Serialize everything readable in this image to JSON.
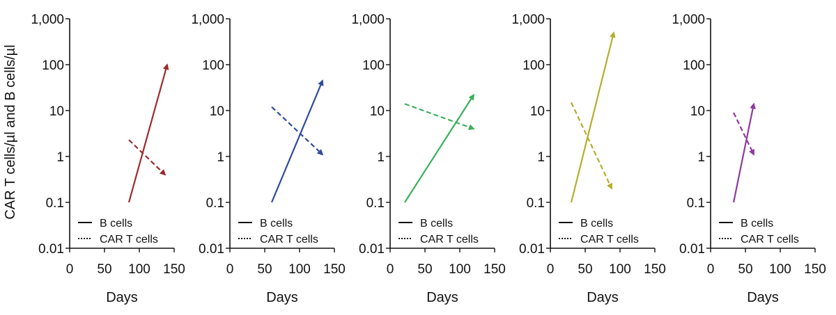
{
  "figure": {
    "ylabel": "CAR T cells/µl and B cells/µl"
  },
  "chart_data": [
    {
      "type": "line",
      "panel": 1,
      "color": "#9e2a2b",
      "xlabel": "Days",
      "x_ticks": [
        0,
        50,
        100,
        150
      ],
      "y_ticks": [
        "0.01",
        "0.1",
        "1",
        "10",
        "100",
        "1,000"
      ],
      "ylim": [
        0.01,
        1000
      ],
      "xlim": [
        0,
        150
      ],
      "y_scale": "log",
      "legend": [
        "B cells",
        "CAR T cells"
      ],
      "series": [
        {
          "name": "B cells",
          "style": "solid",
          "x": [
            85,
            140
          ],
          "y": [
            0.1,
            100
          ]
        },
        {
          "name": "CAR T cells",
          "style": "dashed",
          "x": [
            85,
            137
          ],
          "y": [
            2.3,
            0.4
          ]
        }
      ]
    },
    {
      "type": "line",
      "panel": 2,
      "color": "#2f4aa0",
      "xlabel": "Days",
      "x_ticks": [
        0,
        50,
        100,
        150
      ],
      "y_ticks": [
        "0.01",
        "0.1",
        "1",
        "10",
        "100",
        "1,000"
      ],
      "ylim": [
        0.01,
        1000
      ],
      "xlim": [
        0,
        150
      ],
      "y_scale": "log",
      "legend": [
        "B cells",
        "CAR T cells"
      ],
      "series": [
        {
          "name": "B cells",
          "style": "solid",
          "x": [
            60,
            133
          ],
          "y": [
            0.1,
            45
          ]
        },
        {
          "name": "CAR T cells",
          "style": "dashed",
          "x": [
            60,
            133
          ],
          "y": [
            12,
            1.1
          ]
        }
      ]
    },
    {
      "type": "line",
      "panel": 3,
      "color": "#3aaf5c",
      "xlabel": "Days",
      "x_ticks": [
        0,
        50,
        100,
        150
      ],
      "y_ticks": [
        "0.01",
        "0.1",
        "1",
        "10",
        "100",
        "1,000"
      ],
      "ylim": [
        0.01,
        1000
      ],
      "xlim": [
        0,
        150
      ],
      "y_scale": "log",
      "legend": [
        "B cells",
        "CAR T cells"
      ],
      "series": [
        {
          "name": "B cells",
          "style": "solid",
          "x": [
            21,
            120
          ],
          "y": [
            0.1,
            22
          ]
        },
        {
          "name": "CAR T cells",
          "style": "dashed",
          "x": [
            21,
            120
          ],
          "y": [
            14,
            4
          ]
        }
      ]
    },
    {
      "type": "line",
      "panel": 4,
      "color": "#b5ad2c",
      "xlabel": "Days",
      "x_ticks": [
        0,
        50,
        100,
        150
      ],
      "y_ticks": [
        "0.01",
        "0.1",
        "1",
        "10",
        "100",
        "1,000"
      ],
      "ylim": [
        0.01,
        1000
      ],
      "xlim": [
        0,
        150
      ],
      "y_scale": "log",
      "legend": [
        "B cells",
        "CAR T cells"
      ],
      "series": [
        {
          "name": "B cells",
          "style": "solid",
          "x": [
            30,
            91
          ],
          "y": [
            0.1,
            500
          ]
        },
        {
          "name": "CAR T cells",
          "style": "dashed",
          "x": [
            30,
            88
          ],
          "y": [
            15,
            0.2
          ]
        }
      ]
    },
    {
      "type": "line",
      "panel": 5,
      "color": "#8e3a9e",
      "xlabel": "Days",
      "x_ticks": [
        0,
        50,
        100,
        150
      ],
      "y_ticks": [
        "0.01",
        "0.1",
        "1",
        "10",
        "100",
        "1,000"
      ],
      "ylim": [
        0.01,
        1000
      ],
      "xlim": [
        0,
        150
      ],
      "y_scale": "log",
      "legend": [
        "B cells",
        "CAR T cells"
      ],
      "series": [
        {
          "name": "B cells",
          "style": "solid",
          "x": [
            33,
            62
          ],
          "y": [
            0.1,
            14
          ]
        },
        {
          "name": "CAR T cells",
          "style": "dashed",
          "x": [
            33,
            62
          ],
          "y": [
            9,
            1.1
          ]
        }
      ]
    }
  ]
}
